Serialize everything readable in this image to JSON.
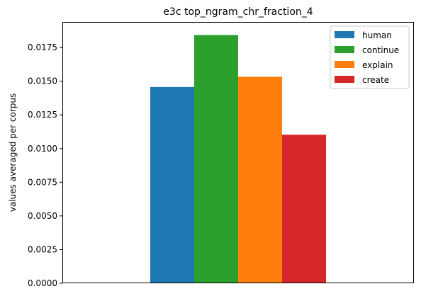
{
  "chart_data": {
    "type": "bar",
    "title": "e3c top_ngram_chr_fraction_4",
    "xlabel": "",
    "ylabel": "values averaged per corpus",
    "ylim": [
      0,
      0.0194
    ],
    "yticks": [
      "0.0000",
      "0.0025",
      "0.0050",
      "0.0075",
      "0.0100",
      "0.0125",
      "0.0150",
      "0.0175"
    ],
    "grid": false,
    "legend_position": "top-right",
    "series": [
      {
        "name": "human",
        "value": 0.01457,
        "color": "#1f77b4"
      },
      {
        "name": "continue",
        "value": 0.01843,
        "color": "#2ca02c"
      },
      {
        "name": "explain",
        "value": 0.01533,
        "color": "#ff7f0e"
      },
      {
        "name": "create",
        "value": 0.01103,
        "color": "#d62728"
      }
    ]
  }
}
